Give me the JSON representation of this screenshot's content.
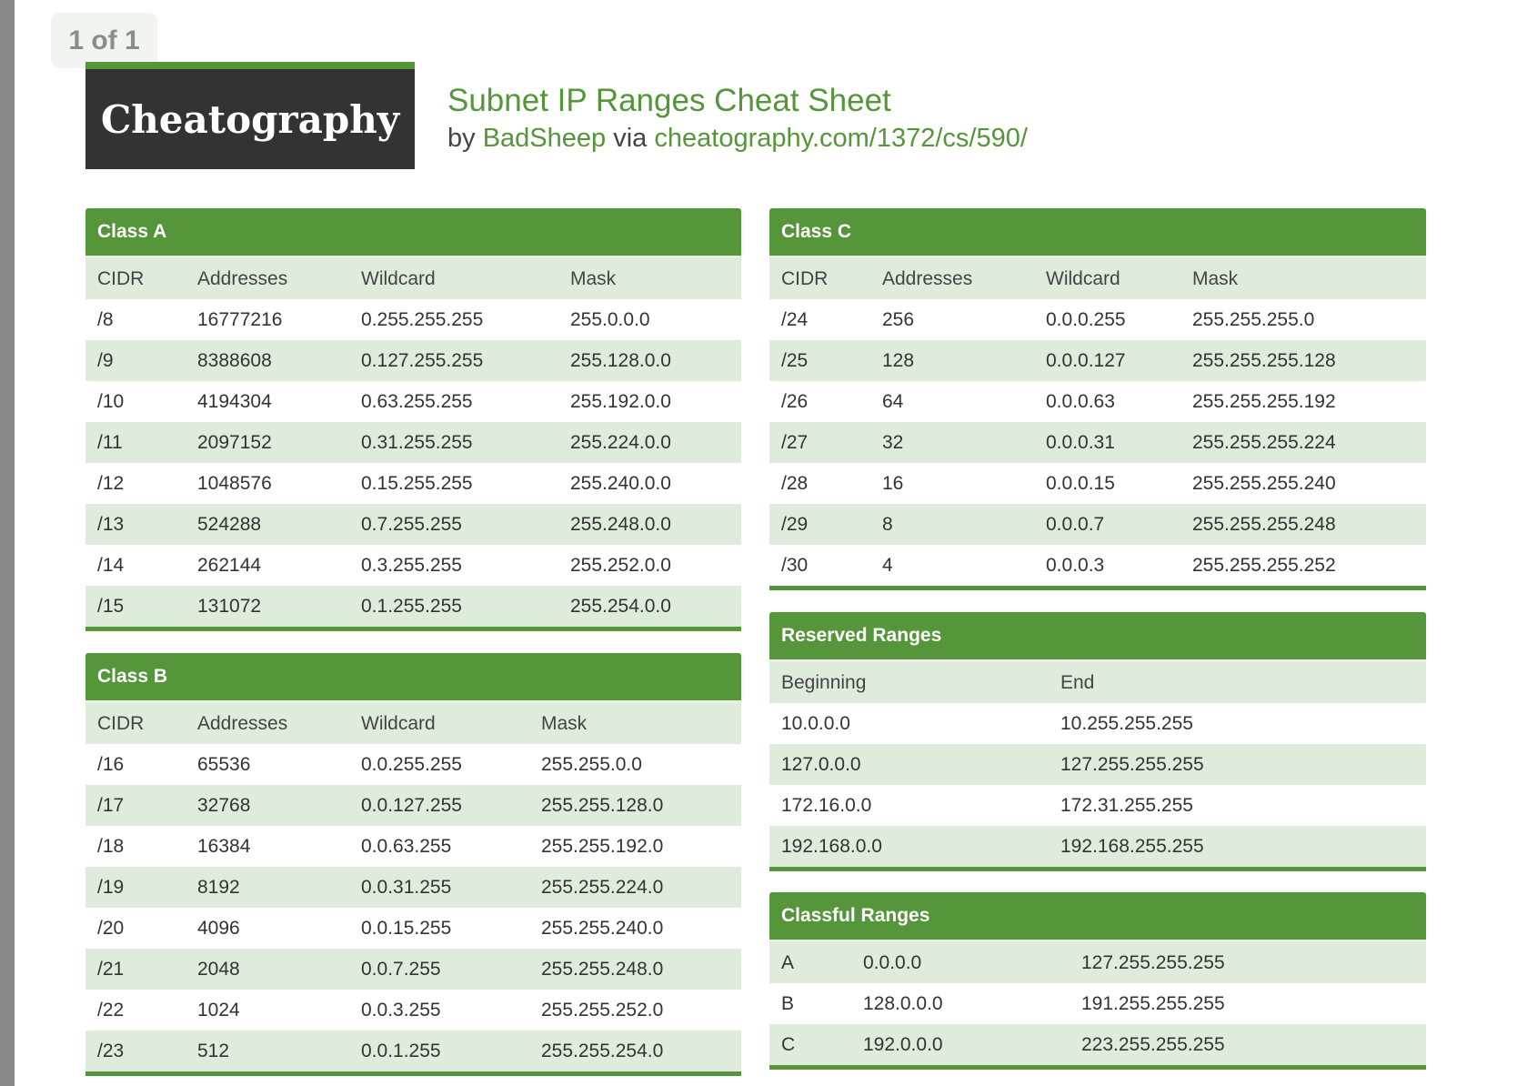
{
  "page_indicator": "1 of 1",
  "logo_text": "Cheatography",
  "title": "Subnet IP Ranges Cheat Sheet",
  "byline": {
    "by": "by",
    "author": "BadSheep",
    "via": "via",
    "url": "cheatography.com/1372/cs/590/"
  },
  "colors": {
    "accent": "#55963a",
    "row_alt": "#e0ecdb",
    "logo_bg": "#333333"
  },
  "class_a": {
    "title": "Class A",
    "headers": [
      "CIDR",
      "Addresses",
      "Wildcard",
      "Mask"
    ],
    "rows": [
      [
        "/8",
        "16777216",
        "0.255.255.255",
        "255.0.0.0"
      ],
      [
        "/9",
        "8388608",
        "0.127.255.255",
        "255.128.0.0"
      ],
      [
        "/10",
        "4194304",
        "0.63.255.255",
        "255.192.0.0"
      ],
      [
        "/11",
        "2097152",
        "0.31.255.255",
        "255.224.0.0"
      ],
      [
        "/12",
        "1048576",
        "0.15.255.255",
        "255.240.0.0"
      ],
      [
        "/13",
        "524288",
        "0.7.255.255",
        "255.248.0.0"
      ],
      [
        "/14",
        "262144",
        "0.3.255.255",
        "255.252.0.0"
      ],
      [
        "/15",
        "131072",
        "0.1.255.255",
        "255.254.0.0"
      ]
    ]
  },
  "class_b": {
    "title": "Class B",
    "headers": [
      "CIDR",
      "Addresses",
      "Wildcard",
      "Mask"
    ],
    "rows": [
      [
        "/16",
        "65536",
        "0.0.255.255",
        "255.255.0.0"
      ],
      [
        "/17",
        "32768",
        "0.0.127.255",
        "255.255.128.0"
      ],
      [
        "/18",
        "16384",
        "0.0.63.255",
        "255.255.192.0"
      ],
      [
        "/19",
        "8192",
        "0.0.31.255",
        "255.255.224.0"
      ],
      [
        "/20",
        "4096",
        "0.0.15.255",
        "255.255.240.0"
      ],
      [
        "/21",
        "2048",
        "0.0.7.255",
        "255.255.248.0"
      ],
      [
        "/22",
        "1024",
        "0.0.3.255",
        "255.255.252.0"
      ],
      [
        "/23",
        "512",
        "0.0.1.255",
        "255.255.254.0"
      ]
    ]
  },
  "class_c": {
    "title": "Class C",
    "headers": [
      "CIDR",
      "Addresses",
      "Wildcard",
      "Mask"
    ],
    "rows": [
      [
        "/24",
        "256",
        "0.0.0.255",
        "255.255.255.0"
      ],
      [
        "/25",
        "128",
        "0.0.0.127",
        "255.255.255.128"
      ],
      [
        "/26",
        "64",
        "0.0.0.63",
        "255.255.255.192"
      ],
      [
        "/27",
        "32",
        "0.0.0.31",
        "255.255.255.224"
      ],
      [
        "/28",
        "16",
        "0.0.0.15",
        "255.255.255.240"
      ],
      [
        "/29",
        "8",
        "0.0.0.7",
        "255.255.255.248"
      ],
      [
        "/30",
        "4",
        "0.0.0.3",
        "255.255.255.252"
      ]
    ]
  },
  "reserved": {
    "title": "Reserved Ranges",
    "headers": [
      "Beginning",
      "End"
    ],
    "rows": [
      [
        "10.0.0.0",
        "10.255.255.255"
      ],
      [
        "127.0.0.0",
        "127.255.255.255"
      ],
      [
        "172.16.0.0",
        "172.31.255.255"
      ],
      [
        "192.168.0.0",
        "192.168.255.255"
      ]
    ]
  },
  "classful": {
    "title": "Classful Ranges",
    "rows": [
      [
        "A",
        "0.0.0.0",
        "127.255.255.255"
      ],
      [
        "B",
        "128.0.0.0",
        "191.255.255.255"
      ],
      [
        "C",
        "192.0.0.0",
        "223.255.255.255"
      ]
    ]
  }
}
